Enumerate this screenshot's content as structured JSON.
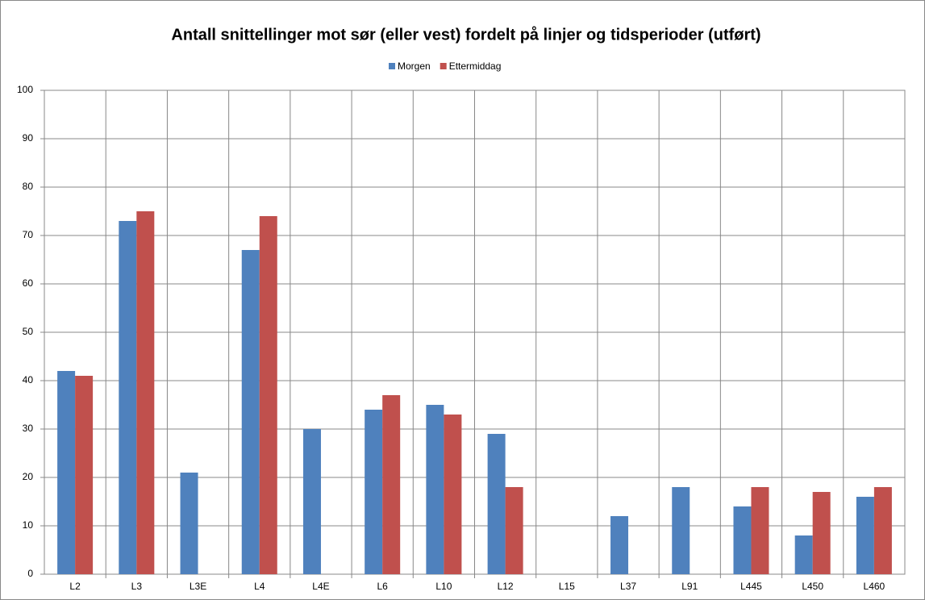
{
  "chart_data": {
    "type": "bar",
    "title": "Antall snittellinger mot sør (eller vest) fordelt på linjer og tidsperioder (utført)",
    "categories": [
      "L2",
      "L3",
      "L3E",
      "L4",
      "L4E",
      "L6",
      "L10",
      "L12",
      "L15",
      "L37",
      "L91",
      "L445",
      "L450",
      "L460"
    ],
    "series": [
      {
        "name": "Morgen",
        "color": "#4f81bd",
        "values": [
          42,
          73,
          21,
          67,
          30,
          34,
          35,
          29,
          null,
          12,
          18,
          14,
          8,
          16
        ]
      },
      {
        "name": "Ettermiddag",
        "color": "#c0504d",
        "values": [
          41,
          75,
          null,
          74,
          null,
          37,
          33,
          18,
          null,
          null,
          null,
          18,
          17,
          18
        ]
      }
    ],
    "ylim": [
      0,
      100
    ],
    "yticks": [
      0,
      10,
      20,
      30,
      40,
      50,
      60,
      70,
      80,
      90,
      100
    ],
    "grid": true,
    "legend": "top"
  }
}
